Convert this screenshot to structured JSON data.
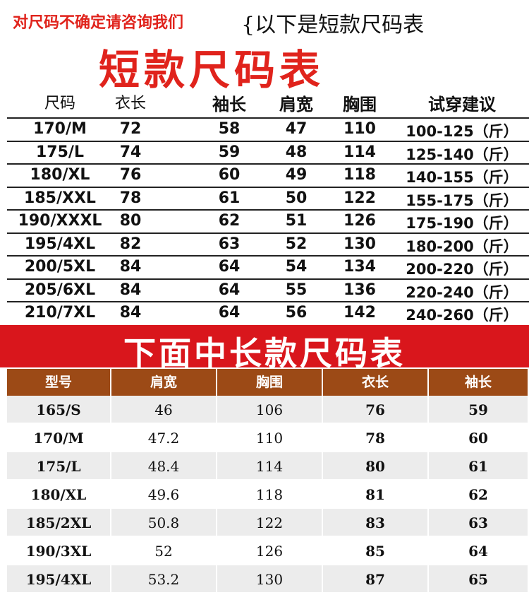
{
  "header": {
    "note": "对尺码不确定请咨询我们",
    "subtitle": "{以下是短款尺码表",
    "title": "短款尺码表"
  },
  "short_table": {
    "columns": [
      "尺码",
      "衣长",
      "袖长",
      "肩宽",
      "胸围",
      "试穿建议"
    ],
    "rows": [
      [
        "170/M",
        "72",
        "58",
        "47",
        "110",
        "100-125（斤）"
      ],
      [
        "175/L",
        "74",
        "59",
        "48",
        "114",
        "125-140（斤）"
      ],
      [
        "180/XL",
        "76",
        "60",
        "49",
        "118",
        "140-155（斤）"
      ],
      [
        "185/XXL",
        "78",
        "61",
        "50",
        "122",
        "155-175（斤）"
      ],
      [
        "190/XXXL",
        "80",
        "62",
        "51",
        "126",
        "175-190（斤）"
      ],
      [
        "195/4XL",
        "82",
        "63",
        "52",
        "130",
        "180-200（斤）"
      ],
      [
        "200/5XL",
        "84",
        "64",
        "54",
        "134",
        "200-220（斤）"
      ],
      [
        "205/6XL",
        "84",
        "64",
        "55",
        "136",
        "220-240（斤）"
      ],
      [
        "210/7XL",
        "84",
        "64",
        "56",
        "142",
        "240-260（斤）"
      ]
    ]
  },
  "long_title": "下面中长款尺码表",
  "long_table": {
    "columns": [
      "型号",
      "肩宽",
      "胸围",
      "衣长",
      "袖长"
    ],
    "rows": [
      [
        "165/S",
        "46",
        "106",
        "76",
        "59"
      ],
      [
        "170/M",
        "47.2",
        "110",
        "78",
        "60"
      ],
      [
        "175/L",
        "48.4",
        "114",
        "80",
        "61"
      ],
      [
        "180/XL",
        "49.6",
        "118",
        "81",
        "62"
      ],
      [
        "185/2XL",
        "50.8",
        "122",
        "83",
        "63"
      ],
      [
        "190/3XL",
        "52",
        "126",
        "85",
        "64"
      ],
      [
        "195/4XL",
        "53.2",
        "130",
        "87",
        "65"
      ]
    ]
  }
}
